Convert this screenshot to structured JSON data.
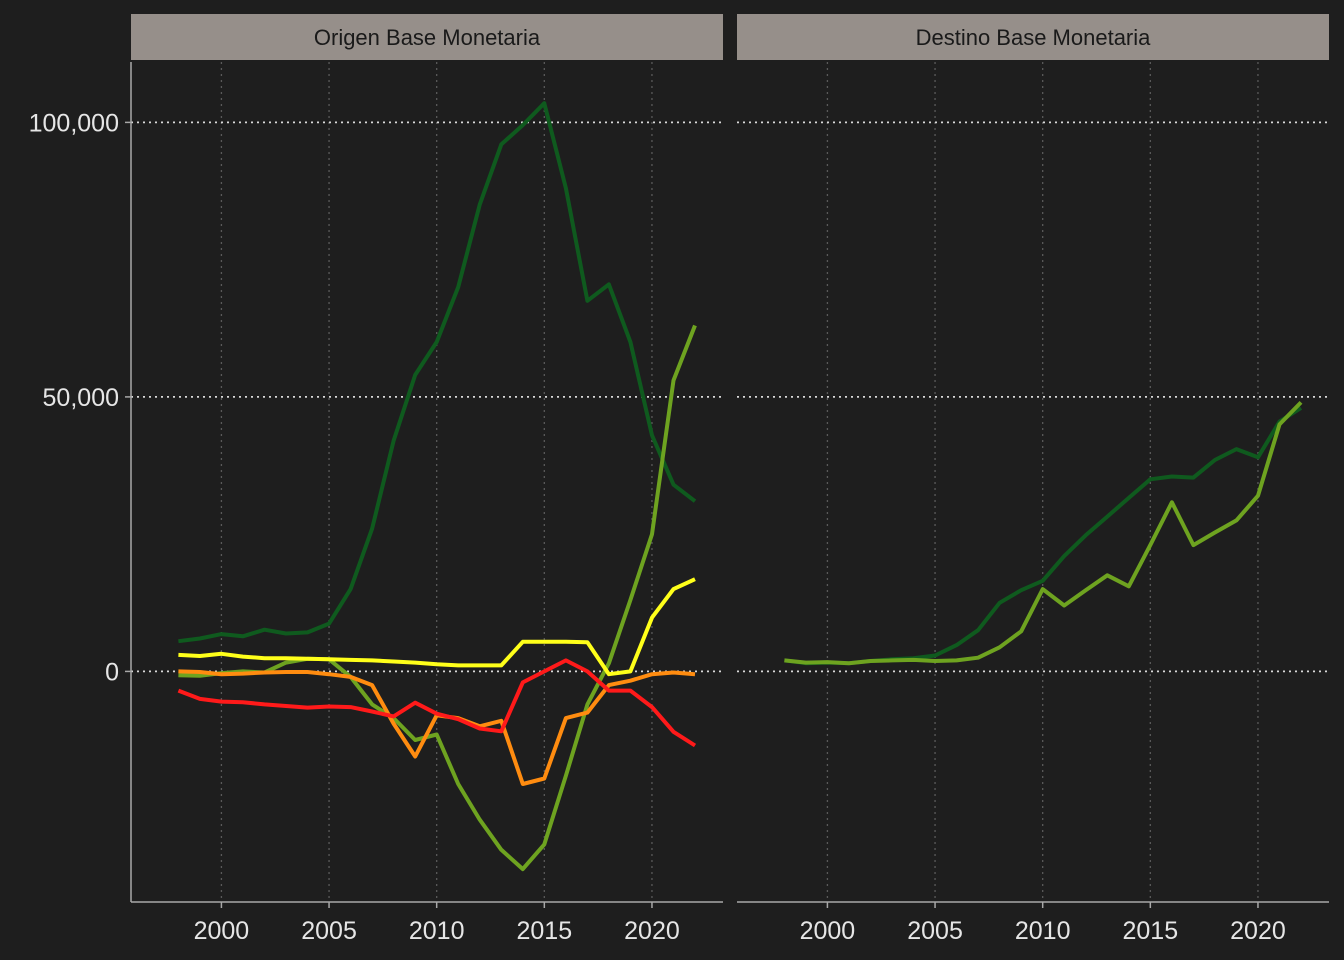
{
  "colors": {
    "background": "#1e1e1e",
    "strip": "#968f8a",
    "grid": "#d9d9d9",
    "axis": "#a8a8a8",
    "text": "#e6e6e6",
    "dark_green": "#0f5a1e",
    "light_green": "#6ea320",
    "yellow": "#ffff1a",
    "orange": "#ff8c10",
    "red": "#ff1a1a"
  },
  "chart_data": {
    "type": "line",
    "xlim": [
      1995.8,
      2023.3
    ],
    "ylim": [
      -42000,
      111000
    ],
    "y_ticks": [
      {
        "value": 0,
        "label": "0"
      },
      {
        "value": 50000,
        "label": "50,000"
      },
      {
        "value": 100000,
        "label": "100,000"
      }
    ],
    "x_ticks": [
      {
        "value": 2000,
        "label": "2000"
      },
      {
        "value": 2005,
        "label": "2005"
      },
      {
        "value": 2010,
        "label": "2010"
      },
      {
        "value": 2015,
        "label": "2015"
      },
      {
        "value": 2020,
        "label": "2020"
      }
    ],
    "grid": "dotted, horizontal major lines and vertical year lines",
    "legend": "none",
    "x": [
      1998,
      1999,
      2000,
      2001,
      2002,
      2003,
      2004,
      2005,
      2006,
      2007,
      2008,
      2009,
      2010,
      2011,
      2012,
      2013,
      2014,
      2015,
      2016,
      2017,
      2018,
      2019,
      2020,
      2021,
      2022
    ],
    "panels": [
      {
        "title": "Origen Base Monetaria",
        "series": [
          {
            "color": "#0f5a1e",
            "values": [
              5500,
              6000,
              6800,
              6400,
              7600,
              6900,
              7100,
              8700,
              15000,
              26000,
              42000,
              54000,
              60000,
              70000,
              85000,
              96000,
              99500,
              103500,
              88000,
              67500,
              70500,
              60000,
              43000,
              34000,
              31000
            ]
          },
          {
            "color": "#6ea320",
            "values": [
              -700,
              -800,
              -300,
              0,
              -200,
              1600,
              2300,
              2200,
              -1000,
              -6000,
              -8500,
              -12500,
              -11500,
              -20500,
              -27000,
              -32500,
              -36000,
              -31500,
              -19000,
              -6000,
              1500,
              13000,
              25000,
              53000,
              63000
            ]
          },
          {
            "color": "#ffff1a",
            "values": [
              3000,
              2800,
              3200,
              2700,
              2400,
              2400,
              2300,
              2200,
              2100,
              2000,
              1800,
              1600,
              1300,
              1100,
              1100,
              1100,
              5400,
              5400,
              5400,
              5300,
              -500,
              0,
              9800,
              15000,
              16800
            ]
          },
          {
            "color": "#ff8c10",
            "values": [
              0,
              -100,
              -500,
              -400,
              -200,
              -100,
              -100,
              -500,
              -1000,
              -2500,
              -9500,
              -15500,
              -8000,
              -8500,
              -10000,
              -9000,
              -20500,
              -19500,
              -8500,
              -7500,
              -2500,
              -1700,
              -500,
              -200,
              -500
            ]
          },
          {
            "color": "#ff1a1a",
            "values": [
              -3500,
              -5000,
              -5500,
              -5600,
              -6000,
              -6300,
              -6600,
              -6400,
              -6500,
              -7300,
              -8200,
              -5700,
              -7700,
              -8700,
              -10400,
              -10900,
              -2000,
              0,
              2000,
              0,
              -3500,
              -3500,
              -6500,
              -11000,
              -13500
            ]
          }
        ]
      },
      {
        "title": "Destino Base Monetaria",
        "series": [
          {
            "color": "#0f5a1e",
            "values": [
              2000,
              1500,
              1600,
              1500,
              1900,
              2200,
              2400,
              2900,
              4800,
              7500,
              12500,
              14800,
              16500,
              21000,
              24800,
              28200,
              31600,
              35000,
              35500,
              35300,
              38500,
              40500,
              39000,
              45500,
              48000
            ]
          },
          {
            "color": "#6ea320",
            "values": [
              2000,
              1600,
              1700,
              1500,
              1900,
              2000,
              2100,
              1900,
              2000,
              2500,
              4400,
              7300,
              15000,
              12000,
              14800,
              17500,
              15500,
              23000,
              30800,
              23000,
              25300,
              27500,
              32000,
              45000,
              49000
            ]
          }
        ]
      }
    ]
  }
}
